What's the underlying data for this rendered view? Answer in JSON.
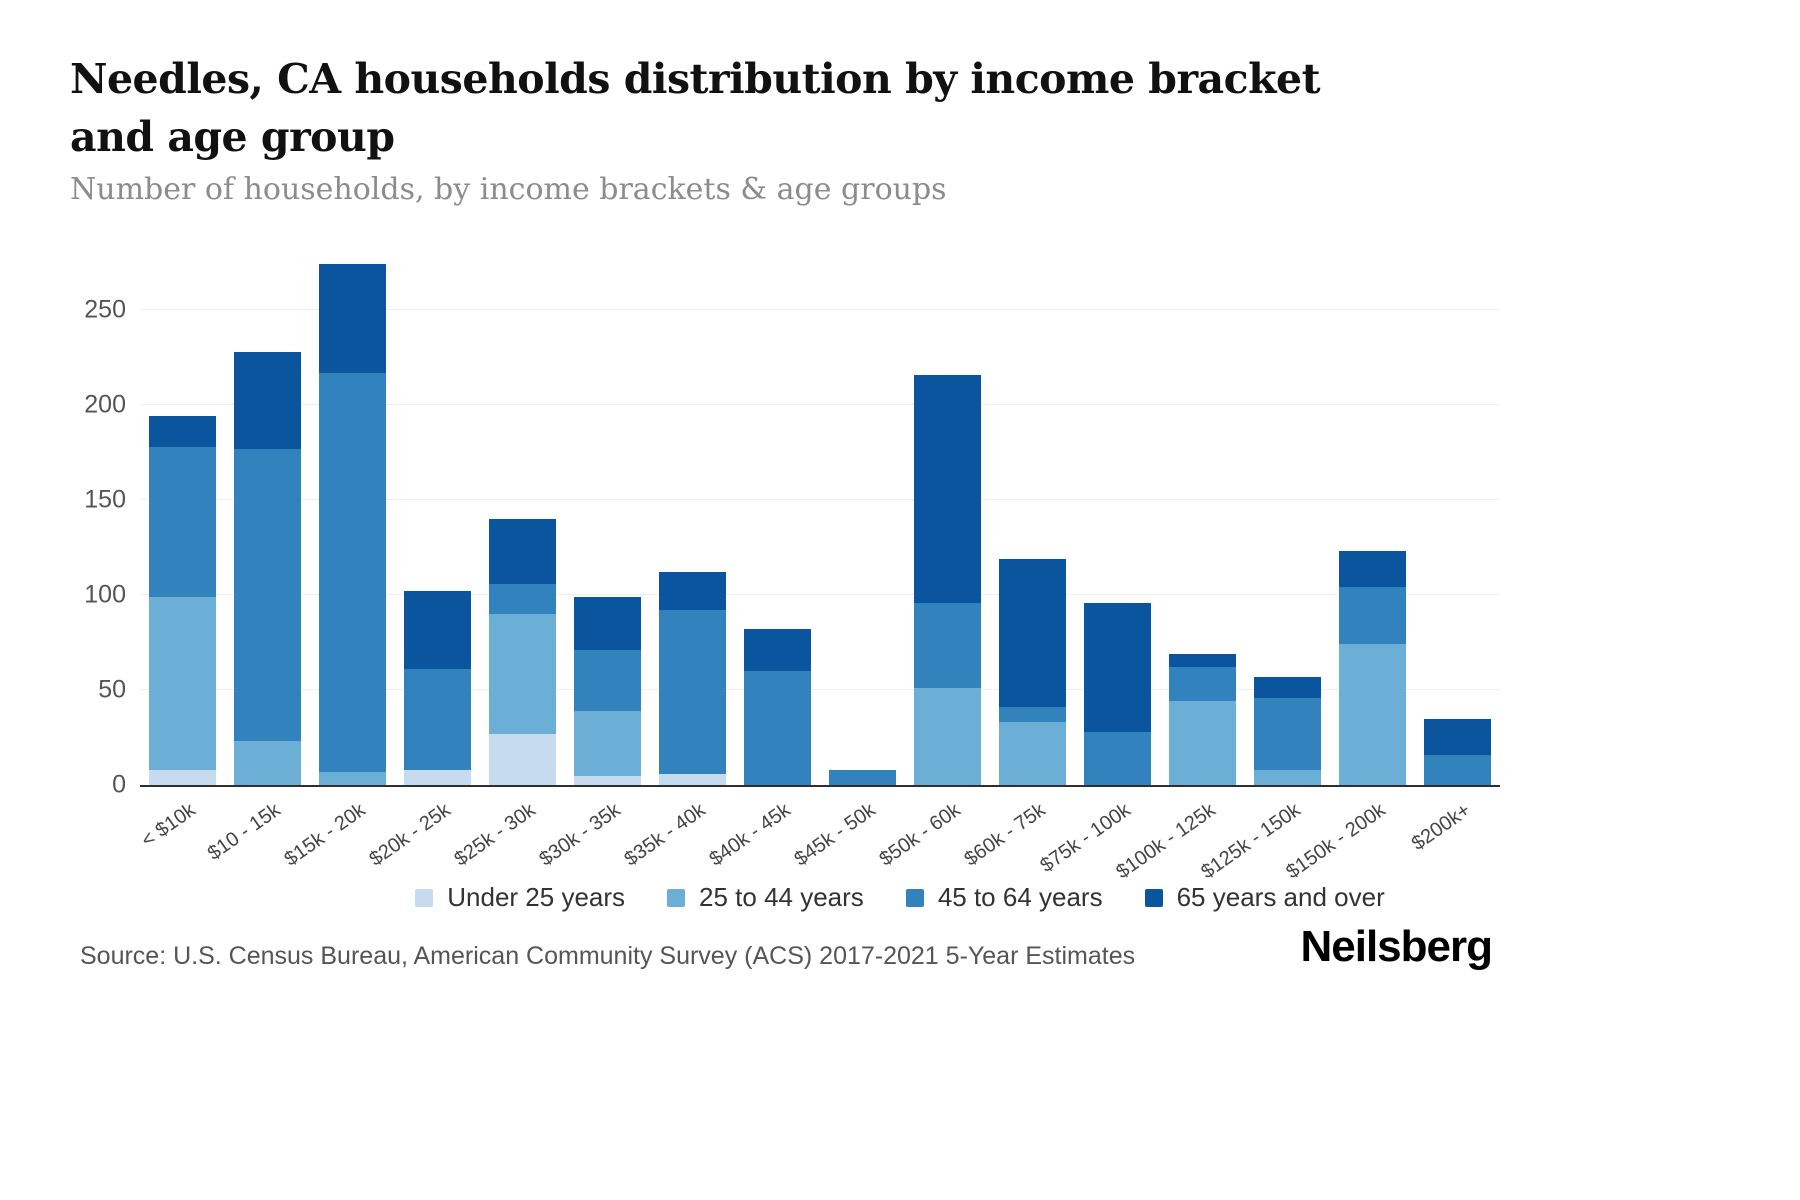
{
  "header": {
    "title": "Needles, CA households distribution by income bracket and age group",
    "subtitle": "Number of households, by income brackets & age groups"
  },
  "footer": {
    "source": "Source: U.S. Census Bureau, American Community Survey (ACS) 2017-2021 5-Year Estimates",
    "brand": "Neilsberg"
  },
  "chart_data": {
    "type": "bar",
    "stacked": true,
    "title": "Needles, CA households distribution by income bracket and age group",
    "xlabel": "",
    "ylabel": "Number of households",
    "ylim": [
      0,
      250
    ],
    "yticks": [
      0,
      50,
      100,
      150,
      200,
      250
    ],
    "grid": true,
    "legend_position": "bottom",
    "categories": [
      "< $10k",
      "$10 - 15k",
      "$15k - 20k",
      "$20k - 25k",
      "$25k - 30k",
      "$30k - 35k",
      "$35k - 40k",
      "$40k - 45k",
      "$45k - 50k",
      "$50k - 60k",
      "$60k - 75k",
      "$75k - 100k",
      "$100k - 125k",
      "$125k - 150k",
      "$150k - 200k",
      "$200k+"
    ],
    "series": [
      {
        "name": "Under 25 years",
        "color": "#c6dbef",
        "values": [
          8,
          0,
          0,
          8,
          27,
          5,
          6,
          0,
          0,
          0,
          0,
          0,
          0,
          0,
          0,
          0
        ]
      },
      {
        "name": "25 to 44 years",
        "color": "#6baed6",
        "values": [
          91,
          23,
          7,
          0,
          63,
          34,
          0,
          0,
          0,
          51,
          33,
          0,
          44,
          8,
          74,
          0
        ]
      },
      {
        "name": "45 to 64 years",
        "color": "#3182bd",
        "values": [
          79,
          154,
          210,
          53,
          16,
          32,
          86,
          60,
          8,
          45,
          8,
          28,
          18,
          38,
          30,
          16
        ]
      },
      {
        "name": "65 years and over",
        "color": "#0b559f",
        "values": [
          16,
          51,
          57,
          41,
          34,
          28,
          20,
          22,
          0,
          120,
          78,
          68,
          7,
          11,
          19,
          19
        ]
      }
    ]
  }
}
